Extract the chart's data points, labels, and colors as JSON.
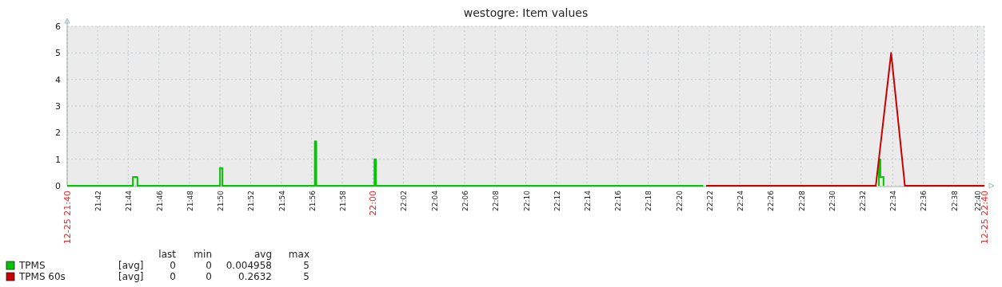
{
  "chart_data": {
    "type": "line",
    "title": "westogre: Item values",
    "xlim": [
      21.6667,
      22.6667
    ],
    "xticks": [
      {
        "value": 21.6667,
        "label": "12-25 21:40"
      },
      {
        "value": 21.7,
        "label": "21:42"
      },
      {
        "value": 21.7333,
        "label": "21:44"
      },
      {
        "value": 21.7667,
        "label": "21:46"
      },
      {
        "value": 21.8,
        "label": "21:48"
      },
      {
        "value": 21.8333,
        "label": "21:50"
      },
      {
        "value": 21.8667,
        "label": "21:52"
      },
      {
        "value": 21.9,
        "label": "21:54"
      },
      {
        "value": 21.9333,
        "label": "21:56"
      },
      {
        "value": 21.9667,
        "label": "21:58"
      },
      {
        "value": 22,
        "label": "22:00"
      },
      {
        "value": 22.0333,
        "label": "22:02"
      },
      {
        "value": 22.0667,
        "label": "22:04"
      },
      {
        "value": 22.1,
        "label": "22:06"
      },
      {
        "value": 22.1333,
        "label": "22:08"
      },
      {
        "value": 22.1667,
        "label": "22:10"
      },
      {
        "value": 22.2,
        "label": "22:12"
      },
      {
        "value": 22.2333,
        "label": "22:14"
      },
      {
        "value": 22.2667,
        "label": "22:16"
      },
      {
        "value": 22.3,
        "label": "22:18"
      },
      {
        "value": 22.3333,
        "label": "22:20"
      },
      {
        "value": 22.3667,
        "label": "22:22"
      },
      {
        "value": 22.4,
        "label": "22:24"
      },
      {
        "value": 22.4333,
        "label": "22:26"
      },
      {
        "value": 22.4667,
        "label": "22:28"
      },
      {
        "value": 22.5,
        "label": "22:30"
      },
      {
        "value": 22.5333,
        "label": "22:32"
      },
      {
        "value": 22.5667,
        "label": "22:34"
      },
      {
        "value": 22.6,
        "label": "22:36"
      },
      {
        "value": 22.6333,
        "label": "22:38"
      },
      {
        "value": 22.6592,
        "label": "22:40"
      },
      {
        "value": 22.6667,
        "label": "12-25 22:40"
      }
    ],
    "ylim": [
      0,
      6
    ],
    "yticks": [
      0,
      1,
      2,
      3,
      4,
      5,
      6
    ],
    "grid": true,
    "legend": "bottom left",
    "series": [
      {
        "name": "TPMS",
        "color": "#00c800",
        "x": [
          21.6667,
          21.7383,
          21.7383,
          21.7433,
          21.7433,
          21.8333,
          21.8333,
          21.8358,
          21.8358,
          21.9367,
          21.9367,
          21.9383,
          21.9383,
          22.0017,
          22.0017,
          22.0033,
          22.0033,
          22.36,
          22.45,
          22.5517,
          22.5517,
          22.5533,
          22.5533,
          22.5567,
          22.5567
        ],
        "values": [
          0,
          0,
          0.33,
          0.33,
          0,
          0,
          0.67,
          0.67,
          0,
          0,
          1.67,
          1.67,
          0,
          0,
          1,
          1,
          0,
          0,
          null,
          0,
          1,
          1,
          0.33,
          0.33,
          0
        ]
      },
      {
        "name": "TPMS 60s",
        "color": "#c80000",
        "x": [
          22.3633,
          22.5483,
          22.565,
          22.58,
          22.6667
        ],
        "values": [
          0,
          0,
          5,
          0,
          0
        ]
      }
    ],
    "annotations": [
      "last",
      "min",
      "avg",
      "max",
      "[avg]",
      "0",
      "0",
      "0.004958",
      "5",
      "[avg]",
      "0",
      "0",
      "0.2632",
      "5"
    ]
  }
}
